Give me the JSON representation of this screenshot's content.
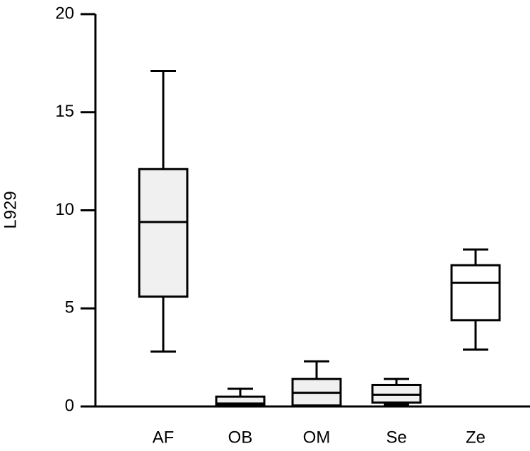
{
  "chart_data": {
    "type": "box",
    "y_label": "L929",
    "categories": [
      "AF",
      "OB",
      "OM",
      "Se",
      "Ze"
    ],
    "boxes": [
      {
        "min": 2.8,
        "q1": 5.6,
        "median": 9.4,
        "q3": 12.1,
        "max": 17.1
      },
      {
        "min": 0,
        "q1": 0.1,
        "median": 0.15,
        "q3": 0.5,
        "max": 0.9
      },
      {
        "min": 0,
        "q1": 0.05,
        "median": 0.7,
        "q3": 1.4,
        "max": 2.3
      },
      {
        "min": 0.1,
        "q1": 0.2,
        "median": 0.6,
        "q3": 1.1,
        "max": 1.4
      },
      {
        "min": 2.9,
        "q1": 4.4,
        "median": 6.3,
        "q3": 7.2,
        "max": 8.0
      }
    ],
    "colors": [
      "#f0f0f0",
      "#f0f0f0",
      "#f0f0f0",
      "#f0f0f0",
      "#ffffff"
    ],
    "ylim": [
      0,
      20
    ],
    "yticks": [
      0,
      5,
      10,
      15,
      20
    ]
  }
}
